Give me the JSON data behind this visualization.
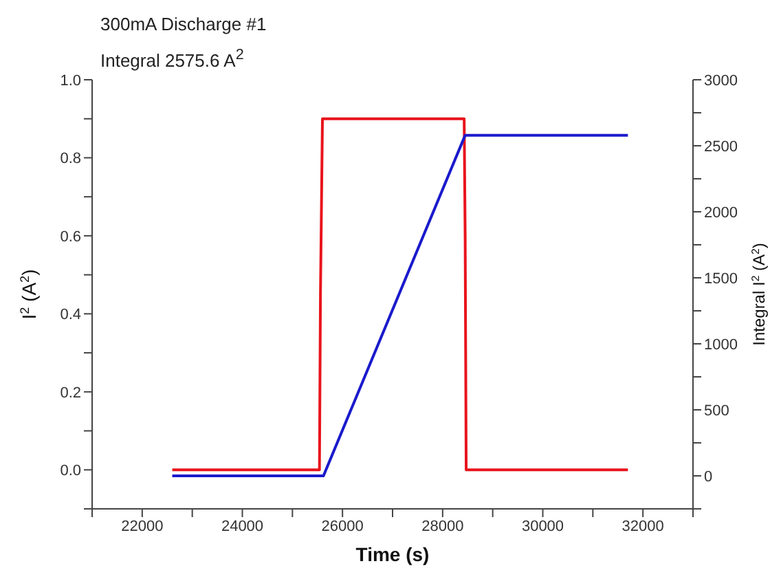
{
  "chart_data": {
    "type": "line",
    "title": "300mA Discharge #1",
    "subtitle": "Integral 2575.6 A$^{2}$",
    "xlabel": "Time (s)",
    "ylabel": "I$^{2}$ (A$^{2}$)",
    "y2label": "Integral I$^{2}$ (A$^{2}$)",
    "series": [
      {
        "color": "#e8141c",
        "x": [
          22600,
          25540,
          25560,
          25600,
          28430,
          28450,
          28470,
          31700
        ],
        "values": [
          0,
          0,
          0.45,
          0.9,
          0.9,
          0.6,
          0,
          0
        ]
      },
      {
        "color": "#1a1acc",
        "axis": "y2",
        "x": [
          22600,
          25620,
          28450,
          31700
        ],
        "values": [
          0,
          0,
          2580,
          2580
        ]
      }
    ],
    "xlim": [
      21000,
      33000
    ],
    "xticks": [
      {
        "value": 21000,
        "label": null
      },
      22000,
      {
        "value": 23000,
        "label": null
      },
      24000,
      {
        "value": 25000,
        "label": null
      },
      26000,
      {
        "value": 27000,
        "label": null
      },
      28000,
      {
        "value": 29000,
        "label": null
      },
      30000,
      {
        "value": 31000,
        "label": null
      },
      32000,
      {
        "value": 33000,
        "label": null
      }
    ],
    "ylim": [
      -0.1,
      1.0
    ],
    "yticks": [
      {
        "value": -0.1,
        "label": null
      },
      {
        "value": 0,
        "label": "0.0"
      },
      {
        "value": 0.1,
        "label": null
      },
      0.2,
      {
        "value": 0.3,
        "label": null
      },
      0.4,
      {
        "value": 0.5,
        "label": null
      },
      0.6,
      {
        "value": 0.7,
        "label": null
      },
      0.8,
      {
        "value": 0.9,
        "label": null
      },
      {
        "value": 1,
        "label": "1.0"
      }
    ],
    "y2lim": [
      -250,
      3000
    ],
    "y2ticks": [
      {
        "value": -250,
        "label": null
      },
      0,
      {
        "value": 250,
        "label": null
      },
      500,
      {
        "value": 750,
        "label": null
      },
      1000,
      {
        "value": 1250,
        "label": null
      },
      1500,
      {
        "value": 1750,
        "label": null
      },
      2000,
      {
        "value": 2250,
        "label": null
      },
      2500,
      {
        "value": 2750,
        "label": null
      },
      3000
    ],
    "grid": false,
    "legend": false,
    "marker": "none",
    "line_style": "solid"
  }
}
